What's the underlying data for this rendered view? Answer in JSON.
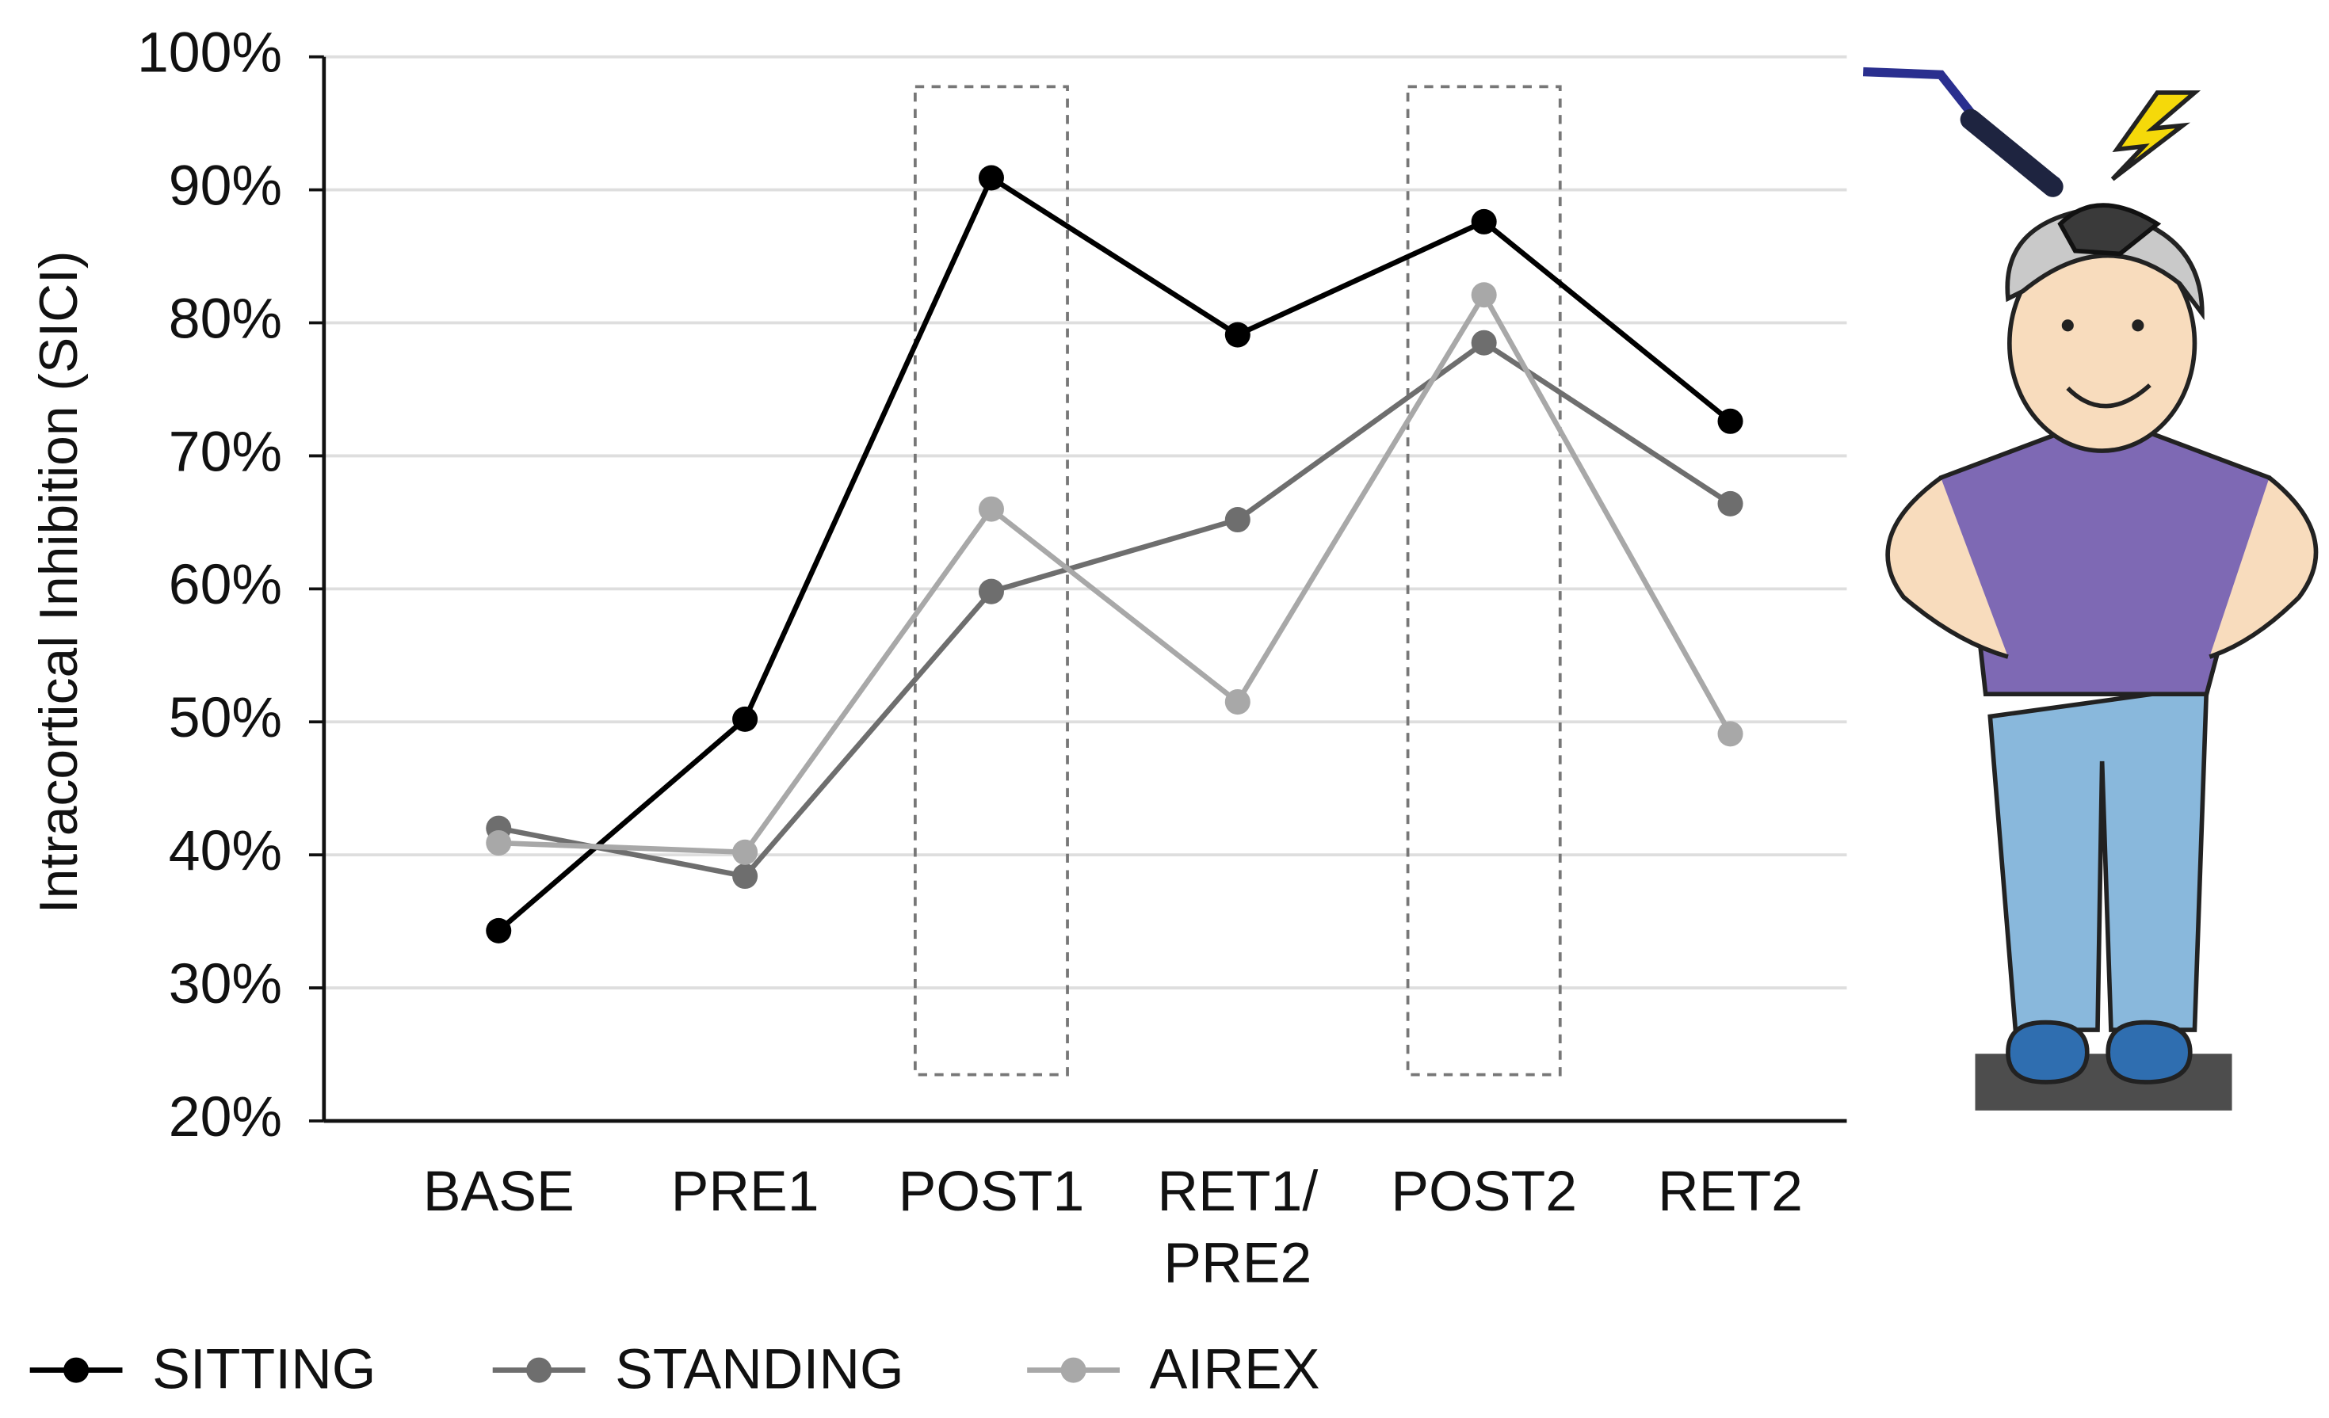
{
  "chart_data": {
    "type": "line",
    "y_label": "Intracortical Inhibition (SICI)",
    "categories": [
      "BASE",
      "PRE1",
      "POST1",
      "RET1/PRE2",
      "POST2",
      "RET2"
    ],
    "series": [
      {
        "name": "SITTING",
        "color": "#000000",
        "values": [
          34.3,
          50.2,
          90.9,
          79.1,
          87.6,
          72.6
        ]
      },
      {
        "name": "STANDING",
        "color": "#6e6e6e",
        "values": [
          42.0,
          38.4,
          59.8,
          65.2,
          78.5,
          66.4
        ]
      },
      {
        "name": "AIREX",
        "color": "#a8a8a8",
        "values": [
          40.9,
          40.2,
          66.0,
          51.5,
          82.1,
          49.1
        ]
      }
    ],
    "ylim": [
      20,
      100
    ],
    "yticks": [
      {
        "value": 20,
        "label": "20%"
      },
      {
        "value": 30,
        "label": "30%"
      },
      {
        "value": 40,
        "label": "40%"
      },
      {
        "value": 50,
        "label": "50%"
      },
      {
        "value": 60,
        "label": "60%"
      },
      {
        "value": 70,
        "label": "70%"
      },
      {
        "value": 80,
        "label": "80%"
      },
      {
        "value": 90,
        "label": "90%"
      },
      {
        "value": 100,
        "label": "100%"
      }
    ],
    "grid": true,
    "highlight": [
      "POST1",
      "POST2"
    ],
    "legend": "bottom"
  }
}
